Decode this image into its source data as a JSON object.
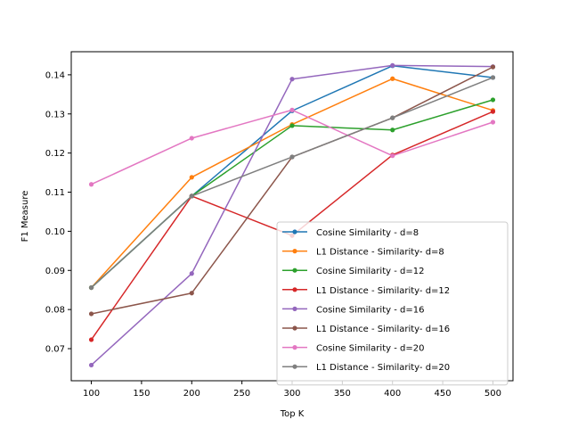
{
  "chart_data": {
    "type": "line",
    "title": "",
    "xlabel": "Top K",
    "ylabel": "F1 Measure",
    "x": [
      100,
      200,
      300,
      400,
      500
    ],
    "xlim": [
      80,
      520
    ],
    "ylim": [
      0.0618,
      0.1459
    ],
    "xticks": [
      100,
      150,
      200,
      250,
      300,
      350,
      400,
      450,
      500
    ],
    "yticks": [
      0.07,
      0.08,
      0.09,
      0.1,
      0.11,
      0.12,
      0.13,
      0.14
    ],
    "ytick_labels": [
      "0.07",
      "0.08",
      "0.09",
      "0.10",
      "0.11",
      "0.12",
      "0.13",
      "0.14"
    ],
    "grid": false,
    "legend_position": "lower-right",
    "series": [
      {
        "name": "Cosine Similarity - d=8",
        "color": "#1f77b4",
        "values": [
          0.0856,
          0.109,
          0.1308,
          0.1423,
          0.1393
        ]
      },
      {
        "name": "L1 Distance - Similarity- d=8",
        "color": "#ff7f0e",
        "values": [
          0.0856,
          0.1138,
          0.1273,
          0.139,
          0.1309
        ]
      },
      {
        "name": "Cosine Similarity - d=12",
        "color": "#2ca02c",
        "values": [
          0.0856,
          0.109,
          0.127,
          0.1259,
          0.1336
        ]
      },
      {
        "name": "L1 Distance - Similarity- d=12",
        "color": "#d62728",
        "values": [
          0.0723,
          0.109,
          0.0989,
          0.1195,
          0.1306
        ]
      },
      {
        "name": "Cosine Similarity - d=16",
        "color": "#9467bd",
        "values": [
          0.0658,
          0.0892,
          0.1389,
          0.1424,
          0.1421
        ]
      },
      {
        "name": "L1 Distance - Similarity- d=16",
        "color": "#8c564b",
        "values": [
          0.0789,
          0.0842,
          0.119,
          0.129,
          0.142
        ]
      },
      {
        "name": "Cosine Similarity - d=20",
        "color": "#e377c2",
        "values": [
          0.112,
          0.1238,
          0.131,
          0.1193,
          0.1279
        ]
      },
      {
        "name": "L1 Distance - Similarity- d=20",
        "color": "#7f7f7f",
        "values": [
          0.0856,
          0.109,
          0.119,
          0.129,
          0.1393
        ]
      }
    ]
  }
}
